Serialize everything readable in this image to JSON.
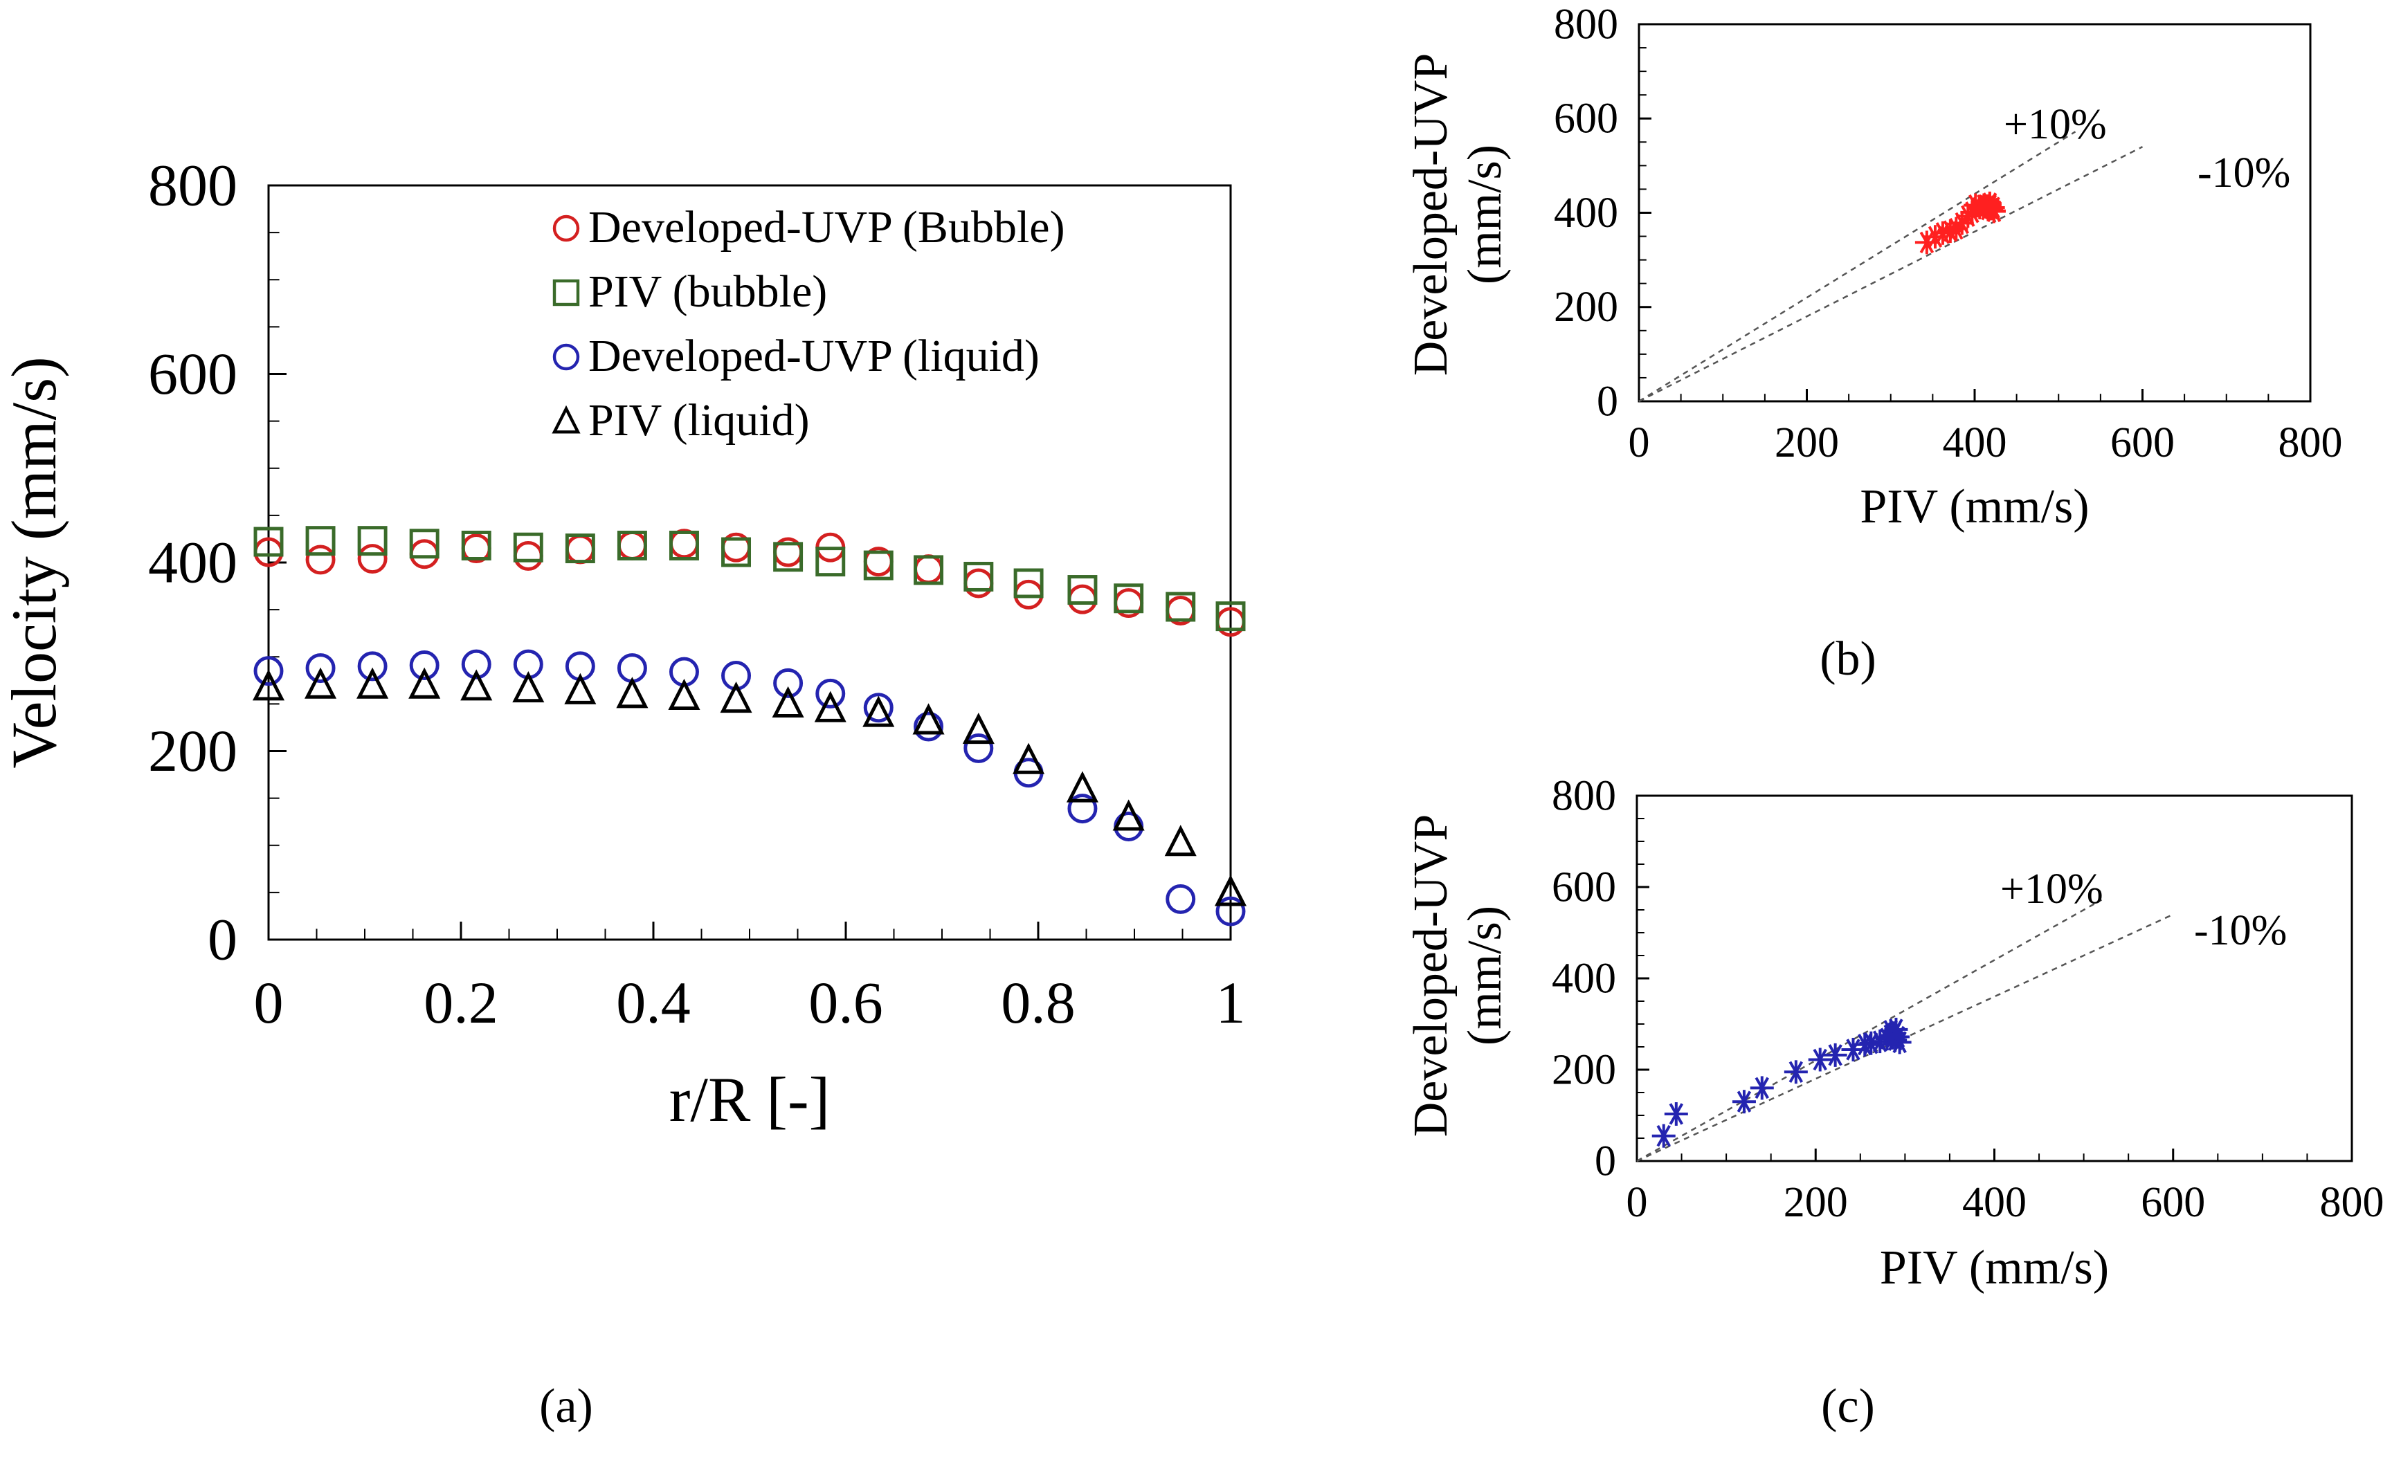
{
  "panels": [
    {
      "id": "a",
      "caption": "(a)"
    },
    {
      "id": "b",
      "caption": "(b)"
    },
    {
      "id": "c",
      "caption": "(c)"
    }
  ],
  "chart_data": [
    {
      "panel": "a",
      "type": "scatter",
      "title": "",
      "xlabel": "r/R [-]",
      "ylabel": "Velocity (mm/s)",
      "xlim": [
        0,
        1
      ],
      "ylim": [
        0,
        800
      ],
      "xticks": [
        "0",
        "0.2",
        "0.4",
        "0.6",
        "0.8",
        "1"
      ],
      "xtick_values": [
        0,
        0.2,
        0.4,
        0.6,
        0.8,
        1
      ],
      "yticks": [
        "0",
        "200",
        "400",
        "600",
        "800"
      ],
      "ytick_values": [
        0,
        200,
        400,
        600,
        800
      ],
      "grid": false,
      "legend": "top-right",
      "series": [
        {
          "name": "Developed-UVP (Bubble)",
          "marker": "circle",
          "color": "#d42020",
          "points": [
            [
              0,
              411
            ],
            [
              0.054,
              403
            ],
            [
              0.108,
              404
            ],
            [
              0.162,
              409
            ],
            [
              0.216,
              415
            ],
            [
              0.27,
              407
            ],
            [
              0.324,
              414
            ],
            [
              0.378,
              418
            ],
            [
              0.432,
              420
            ],
            [
              0.486,
              416
            ],
            [
              0.54,
              411
            ],
            [
              0.584,
              416
            ],
            [
              0.634,
              401
            ],
            [
              0.686,
              393
            ],
            [
              0.738,
              378
            ],
            [
              0.79,
              366
            ],
            [
              0.846,
              361
            ],
            [
              0.894,
              357
            ],
            [
              0.948,
              349
            ],
            [
              1.0,
              337
            ]
          ]
        },
        {
          "name": "PIV (bubble)",
          "marker": "square",
          "color": "#3a6b2a",
          "points": [
            [
              0,
              422
            ],
            [
              0.054,
              423
            ],
            [
              0.108,
              423
            ],
            [
              0.162,
              420
            ],
            [
              0.216,
              418
            ],
            [
              0.27,
              416
            ],
            [
              0.324,
              415
            ],
            [
              0.378,
              418
            ],
            [
              0.432,
              418
            ],
            [
              0.486,
              411
            ],
            [
              0.54,
              406
            ],
            [
              0.584,
              401
            ],
            [
              0.634,
              397
            ],
            [
              0.686,
              392
            ],
            [
              0.738,
              385
            ],
            [
              0.79,
              378
            ],
            [
              0.846,
              371
            ],
            [
              0.894,
              362
            ],
            [
              0.948,
              353
            ],
            [
              1.0,
              343
            ]
          ]
        },
        {
          "name": "Developed-UVP (liquid)",
          "marker": "circle",
          "color": "#2424b0",
          "points": [
            [
              0,
              285
            ],
            [
              0.054,
              288
            ],
            [
              0.108,
              290
            ],
            [
              0.162,
              291
            ],
            [
              0.216,
              292
            ],
            [
              0.27,
              292
            ],
            [
              0.324,
              290
            ],
            [
              0.378,
              288
            ],
            [
              0.432,
              284
            ],
            [
              0.486,
              280
            ],
            [
              0.54,
              272
            ],
            [
              0.584,
              261
            ],
            [
              0.634,
              246
            ],
            [
              0.686,
              226
            ],
            [
              0.738,
              203
            ],
            [
              0.79,
              177
            ],
            [
              0.846,
              139
            ],
            [
              0.894,
              120
            ],
            [
              0.948,
              43
            ],
            [
              1.0,
              30
            ]
          ]
        },
        {
          "name": "PIV (liquid)",
          "marker": "triangle",
          "color": "#000000",
          "points": [
            [
              0,
              268
            ],
            [
              0.054,
              270
            ],
            [
              0.108,
              270
            ],
            [
              0.162,
              270
            ],
            [
              0.216,
              268
            ],
            [
              0.27,
              266
            ],
            [
              0.324,
              264
            ],
            [
              0.378,
              260
            ],
            [
              0.432,
              258
            ],
            [
              0.486,
              255
            ],
            [
              0.54,
              250
            ],
            [
              0.584,
              245
            ],
            [
              0.634,
              240
            ],
            [
              0.686,
              232
            ],
            [
              0.738,
              222
            ],
            [
              0.79,
              190
            ],
            [
              0.846,
              160
            ],
            [
              0.894,
              130
            ],
            [
              0.948,
              103
            ],
            [
              1.0,
              50
            ]
          ]
        }
      ]
    },
    {
      "panel": "b",
      "type": "scatter",
      "title": "",
      "xlabel": "PIV (mm/s)",
      "ylabel": "Developed-UVP (mm/s)",
      "xlim": [
        0,
        800
      ],
      "ylim": [
        0,
        800
      ],
      "xticks": [
        "0",
        "200",
        "400",
        "600",
        "800"
      ],
      "xtick_values": [
        0,
        200,
        400,
        600,
        800
      ],
      "yticks": [
        "0",
        "200",
        "400",
        "600",
        "800"
      ],
      "ytick_values": [
        0,
        200,
        400,
        600,
        800
      ],
      "grid": false,
      "annotations": [
        "+10%",
        "-10%"
      ],
      "reference_lines": [
        {
          "label": "+10%",
          "slope": 1.1,
          "x_end": 520
        },
        {
          "label": "-10%",
          "slope": 0.9,
          "x_end": 600
        }
      ],
      "series": [
        {
          "marker": "asterisk",
          "color": "#ff2020",
          "points": [
            [
              343,
              337
            ],
            [
              353,
              349
            ],
            [
              362,
              357
            ],
            [
              371,
              361
            ],
            [
              378,
              366
            ],
            [
              385,
              378
            ],
            [
              392,
              393
            ],
            [
              397,
              401
            ],
            [
              401,
              416
            ],
            [
              406,
              411
            ],
            [
              411,
              416
            ],
            [
              415,
              414
            ],
            [
              416,
              407
            ],
            [
              418,
              415
            ],
            [
              418,
              420
            ],
            [
              418,
              418
            ],
            [
              420,
              409
            ],
            [
              422,
              411
            ],
            [
              423,
              404
            ],
            [
              423,
              403
            ]
          ]
        }
      ]
    },
    {
      "panel": "c",
      "type": "scatter",
      "title": "",
      "xlabel": "PIV (mm/s)",
      "ylabel": "Developed-UVP (mm/s)",
      "xlim": [
        0,
        800
      ],
      "ylim": [
        0,
        800
      ],
      "xticks": [
        "0",
        "200",
        "400",
        "600",
        "800"
      ],
      "xtick_values": [
        0,
        200,
        400,
        600,
        800
      ],
      "yticks": [
        "0",
        "200",
        "400",
        "600",
        "800"
      ],
      "ytick_values": [
        0,
        200,
        400,
        600,
        800
      ],
      "grid": false,
      "annotations": [
        "+10%",
        "-10%"
      ],
      "reference_lines": [
        {
          "label": "+10%",
          "slope": 1.1,
          "x_end": 520
        },
        {
          "label": "-10%",
          "slope": 0.9,
          "x_end": 600
        }
      ],
      "series": [
        {
          "marker": "asterisk",
          "color": "#2424b0",
          "points": [
            [
              30,
              55
            ],
            [
              44,
              103
            ],
            [
              120,
              130
            ],
            [
              140,
              160
            ],
            [
              178,
              195
            ],
            [
              205,
              222
            ],
            [
              222,
              232
            ],
            [
              242,
              244
            ],
            [
              255,
              255
            ],
            [
              262,
              258
            ],
            [
              272,
              262
            ],
            [
              280,
              268
            ],
            [
              284,
              275
            ],
            [
              284,
              285
            ],
            [
              286,
              270
            ],
            [
              288,
              280
            ],
            [
              289,
              265
            ],
            [
              290,
              288
            ],
            [
              292,
              272
            ],
            [
              294,
              260
            ]
          ]
        }
      ]
    }
  ]
}
